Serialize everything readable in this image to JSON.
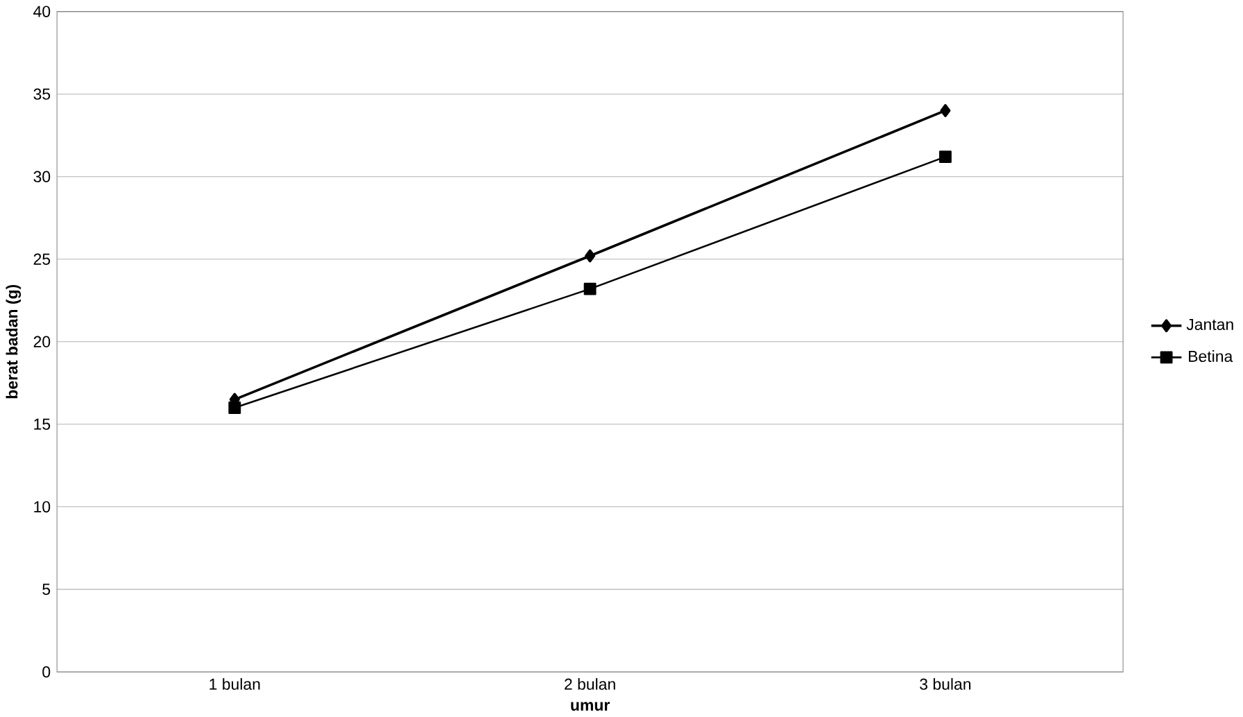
{
  "chart_data": {
    "type": "line",
    "xlabel": "umur",
    "ylabel": "berat badan (g)",
    "categories": [
      "1 bulan",
      "2 bulan",
      "3 bulan"
    ],
    "series": [
      {
        "name": "Jantan",
        "color": "#000000",
        "marker": "diamond",
        "values": [
          16.5,
          25.2,
          34
        ]
      },
      {
        "name": "Betina",
        "color": "#000000",
        "marker": "square",
        "values": [
          16,
          23.2,
          31.2
        ]
      }
    ],
    "ylim": [
      0,
      40
    ],
    "yticks": [
      0,
      5,
      10,
      15,
      20,
      25,
      30,
      35,
      40
    ],
    "grid": "y",
    "legend": "right"
  }
}
